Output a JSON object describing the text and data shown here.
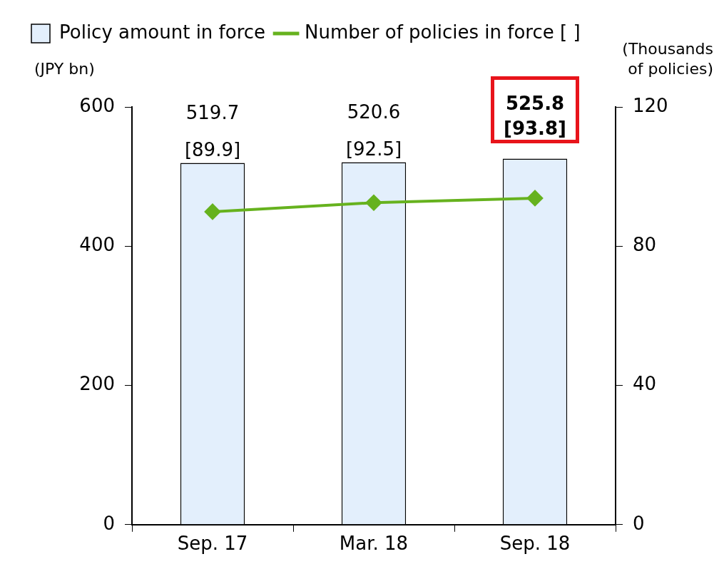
{
  "chart_data": {
    "type": "bar",
    "categories": [
      "Sep. 17",
      "Mar. 18",
      "Sep. 18"
    ],
    "ylabel": "(JPY bn)",
    "y2label": "(Thousands\nof policies)",
    "ylim": [
      0,
      600
    ],
    "yticks": [
      0,
      200,
      400,
      600
    ],
    "y2lim": [
      0,
      120
    ],
    "y2ticks": [
      0,
      40,
      80,
      120
    ],
    "grid": false,
    "legend": "top left",
    "series": [
      {
        "name": "Policy amount in force",
        "color": "#e3effc",
        "values": [
          519.7,
          520.6,
          525.8
        ],
        "value_labels": [
          "519.7",
          "520.6",
          "525.8"
        ]
      },
      {
        "name": "Number of policies in force [ ]",
        "type": "line",
        "axis": "y2",
        "color": "#66b21e",
        "marker": "diamond",
        "values": [
          89.9,
          92.5,
          93.8
        ],
        "value_labels": [
          "[89.9]",
          "[92.5]",
          "[93.8]"
        ]
      }
    ]
  }
}
